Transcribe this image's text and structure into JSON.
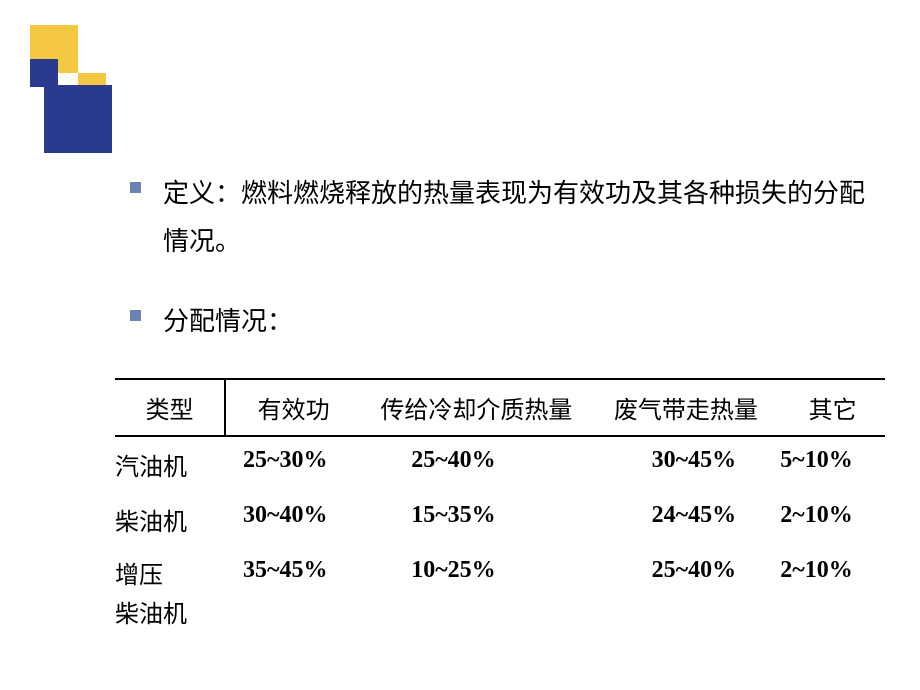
{
  "bullets": [
    "定义：燃料燃烧释放的热量表现为有效功及其各种损失的分配情况。",
    "分配情况："
  ],
  "table": {
    "columns": [
      "类型",
      "有效功",
      "传给冷却介质热量",
      "废气带走热量",
      "其它"
    ],
    "rows": [
      {
        "label": "汽油机",
        "values": [
          "25~30%",
          "25~40%",
          "30~45%",
          "5~10%"
        ]
      },
      {
        "label": "柴油机",
        "values": [
          "30~40%",
          "15~35%",
          "24~45%",
          "2~10%"
        ]
      },
      {
        "label": "增压\n柴油机",
        "values": [
          "35~45%",
          "10~25%",
          "25~40%",
          "2~10%"
        ]
      }
    ]
  },
  "colors": {
    "yellow": "#f5c842",
    "navy": "#2a3b8f",
    "bullet": "#6b82b8",
    "text": "#000000",
    "background": "#ffffff"
  }
}
